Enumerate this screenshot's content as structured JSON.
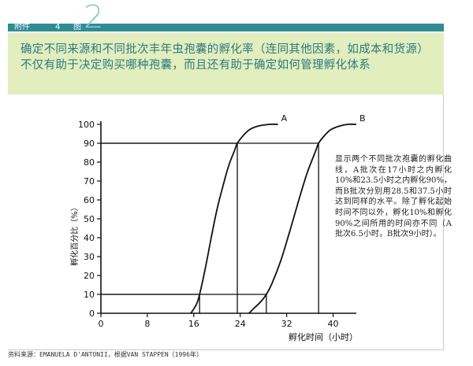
{
  "header": {
    "label_a": "附件",
    "label_num": "4",
    "label_b": "图",
    "big_number": "2"
  },
  "banner": {
    "text": "确定不同来源和不同批次丰年虫孢囊的孵化率（连同其他因素，如成本和货源）不仅有助于决定购买哪种孢囊，而且还有助于确定如何管理孵化体系"
  },
  "annotation": {
    "text": "显示两个不同批次孢囊的孵化曲线，A批次在17小时之内孵化10%和23.5小时之内孵化90%，而B批次分别用28.5和37.5小时达到同样的水平。除了孵化起始时间不同以外，孵化10%和孵化90%之间所用的时间亦不同（A批次6.5小时，B批次9小时）。"
  },
  "source": {
    "text": "资料来源：EMANUELA D'ANTONII，根据VAN STAPPEN（1996年）"
  },
  "colors": {
    "header_bar": "#2f8c93",
    "banner_bg": "#e2eebd",
    "banner_text": "#2c7a83",
    "line": "#111111"
  },
  "chart_data": {
    "type": "line",
    "xlabel": "孵化时间（小时）",
    "ylabel": "孵化百分比（%）",
    "xlim": [
      0,
      44
    ],
    "ylim": [
      0,
      100
    ],
    "x_ticks": [
      0,
      8,
      16,
      24,
      32,
      40
    ],
    "x_tick_labels": [
      "0",
      "8",
      "16",
      "24",
      "32",
      "40"
    ],
    "y_ticks": [
      0,
      10,
      20,
      30,
      40,
      50,
      60,
      70,
      80,
      90,
      100
    ],
    "y_tick_labels": [
      "0",
      "10",
      "20",
      "30",
      "40",
      "50",
      "60",
      "70",
      "80",
      "90",
      "100"
    ],
    "series": [
      {
        "name": "A",
        "x": [
          15.5,
          16.5,
          17,
          18,
          19,
          20,
          21,
          22,
          23,
          23.5,
          24.5,
          25.5,
          27,
          29,
          30.5
        ],
        "y": [
          0,
          5,
          10,
          24,
          40,
          55,
          67,
          78,
          86,
          90,
          94,
          97,
          99,
          100,
          100
        ]
      },
      {
        "name": "B",
        "x": [
          25.5,
          26.5,
          27.5,
          28.5,
          29.5,
          31,
          32.5,
          34,
          35.5,
          37,
          37.5,
          38.5,
          39.5,
          41,
          42.5,
          44
        ],
        "y": [
          0,
          3,
          6,
          10,
          16,
          28,
          43,
          59,
          74,
          86,
          90,
          94,
          97,
          99,
          100,
          100
        ]
      }
    ],
    "reference_lines": [
      {
        "x": 17,
        "y": 10
      },
      {
        "x": 23.5,
        "y": 90
      },
      {
        "x": 28.5,
        "y": 10
      },
      {
        "x": 37.5,
        "y": 90
      }
    ]
  }
}
